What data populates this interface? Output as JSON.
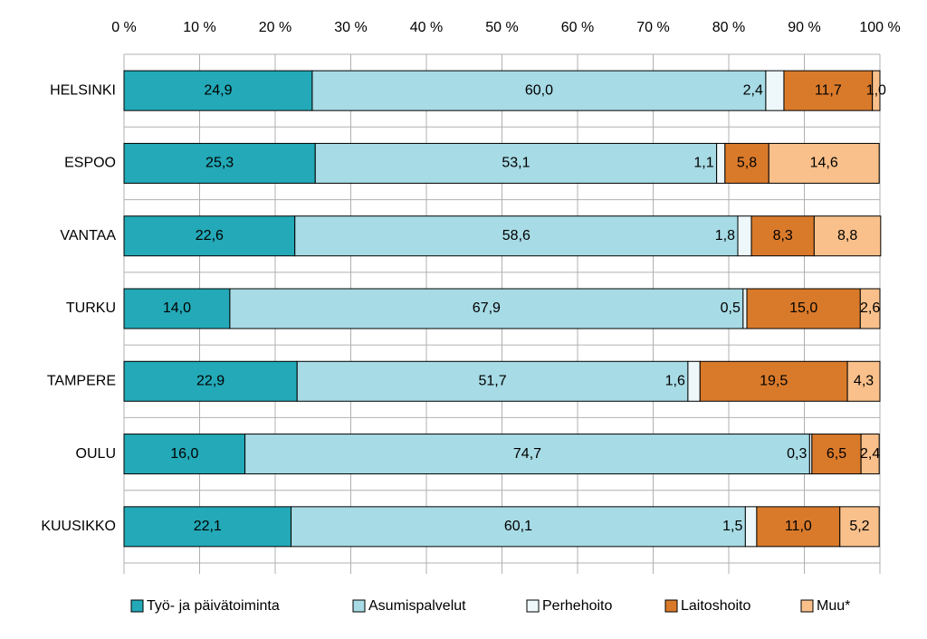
{
  "chart_data": {
    "type": "stacked-bar-horizontal",
    "categories": [
      "HELSINKI",
      "ESPOO",
      "VANTAA",
      "TURKU",
      "TAMPERE",
      "OULU",
      "KUUSIKKO"
    ],
    "series": [
      {
        "name": "Työ- ja päivätoiminta",
        "color": "#23a9b7",
        "values": [
          24.9,
          25.3,
          22.6,
          14.0,
          22.9,
          16.0,
          22.1
        ],
        "value_labels": [
          "24,9",
          "25,3",
          "22,6",
          "14,0",
          "22,9",
          "16,0",
          "22,1"
        ]
      },
      {
        "name": "Asumispalvelut",
        "color": "#a7dbe5",
        "values": [
          60.0,
          53.1,
          58.6,
          67.9,
          51.7,
          74.7,
          60.1
        ],
        "value_labels": [
          "60,0",
          "53,1",
          "58,6",
          "67,9",
          "51,7",
          "74,7",
          "60,1"
        ]
      },
      {
        "name": "Perhehoito",
        "color": "#eef8fb",
        "values": [
          2.4,
          1.1,
          1.8,
          0.5,
          1.6,
          0.3,
          1.5
        ],
        "value_labels": [
          "2,4",
          "1,1",
          "1,8",
          "0,5",
          "1,6",
          "0,3",
          "1,5"
        ]
      },
      {
        "name": "Laitoshoito",
        "color": "#d97a2b",
        "values": [
          11.7,
          5.8,
          8.3,
          15.0,
          19.5,
          6.5,
          11.0
        ],
        "value_labels": [
          "11,7",
          "5,8",
          "8,3",
          "15,0",
          "19,5",
          "6,5",
          "11,0"
        ]
      },
      {
        "name": "Muu*",
        "color": "#f9c08b",
        "values": [
          1.0,
          14.6,
          8.8,
          2.6,
          4.3,
          2.4,
          5.2
        ],
        "value_labels": [
          "1,0",
          "14,6",
          "8,8",
          "2,6",
          "4,3",
          "2,4",
          "5,2"
        ]
      }
    ],
    "xlim": [
      0,
      100
    ],
    "xticks": [
      {
        "value": 0,
        "label": "0 %"
      },
      {
        "value": 10,
        "label": "10 %"
      },
      {
        "value": 20,
        "label": "20 %"
      },
      {
        "value": 30,
        "label": "30 %"
      },
      {
        "value": 40,
        "label": "40 %"
      },
      {
        "value": 50,
        "label": "50 %"
      },
      {
        "value": 60,
        "label": "60 %"
      },
      {
        "value": 70,
        "label": "70 %"
      },
      {
        "value": 80,
        "label": "80 %"
      },
      {
        "value": 90,
        "label": "90 %"
      },
      {
        "value": 100,
        "label": "100 %"
      }
    ],
    "grid": true,
    "legend": "bottom"
  }
}
